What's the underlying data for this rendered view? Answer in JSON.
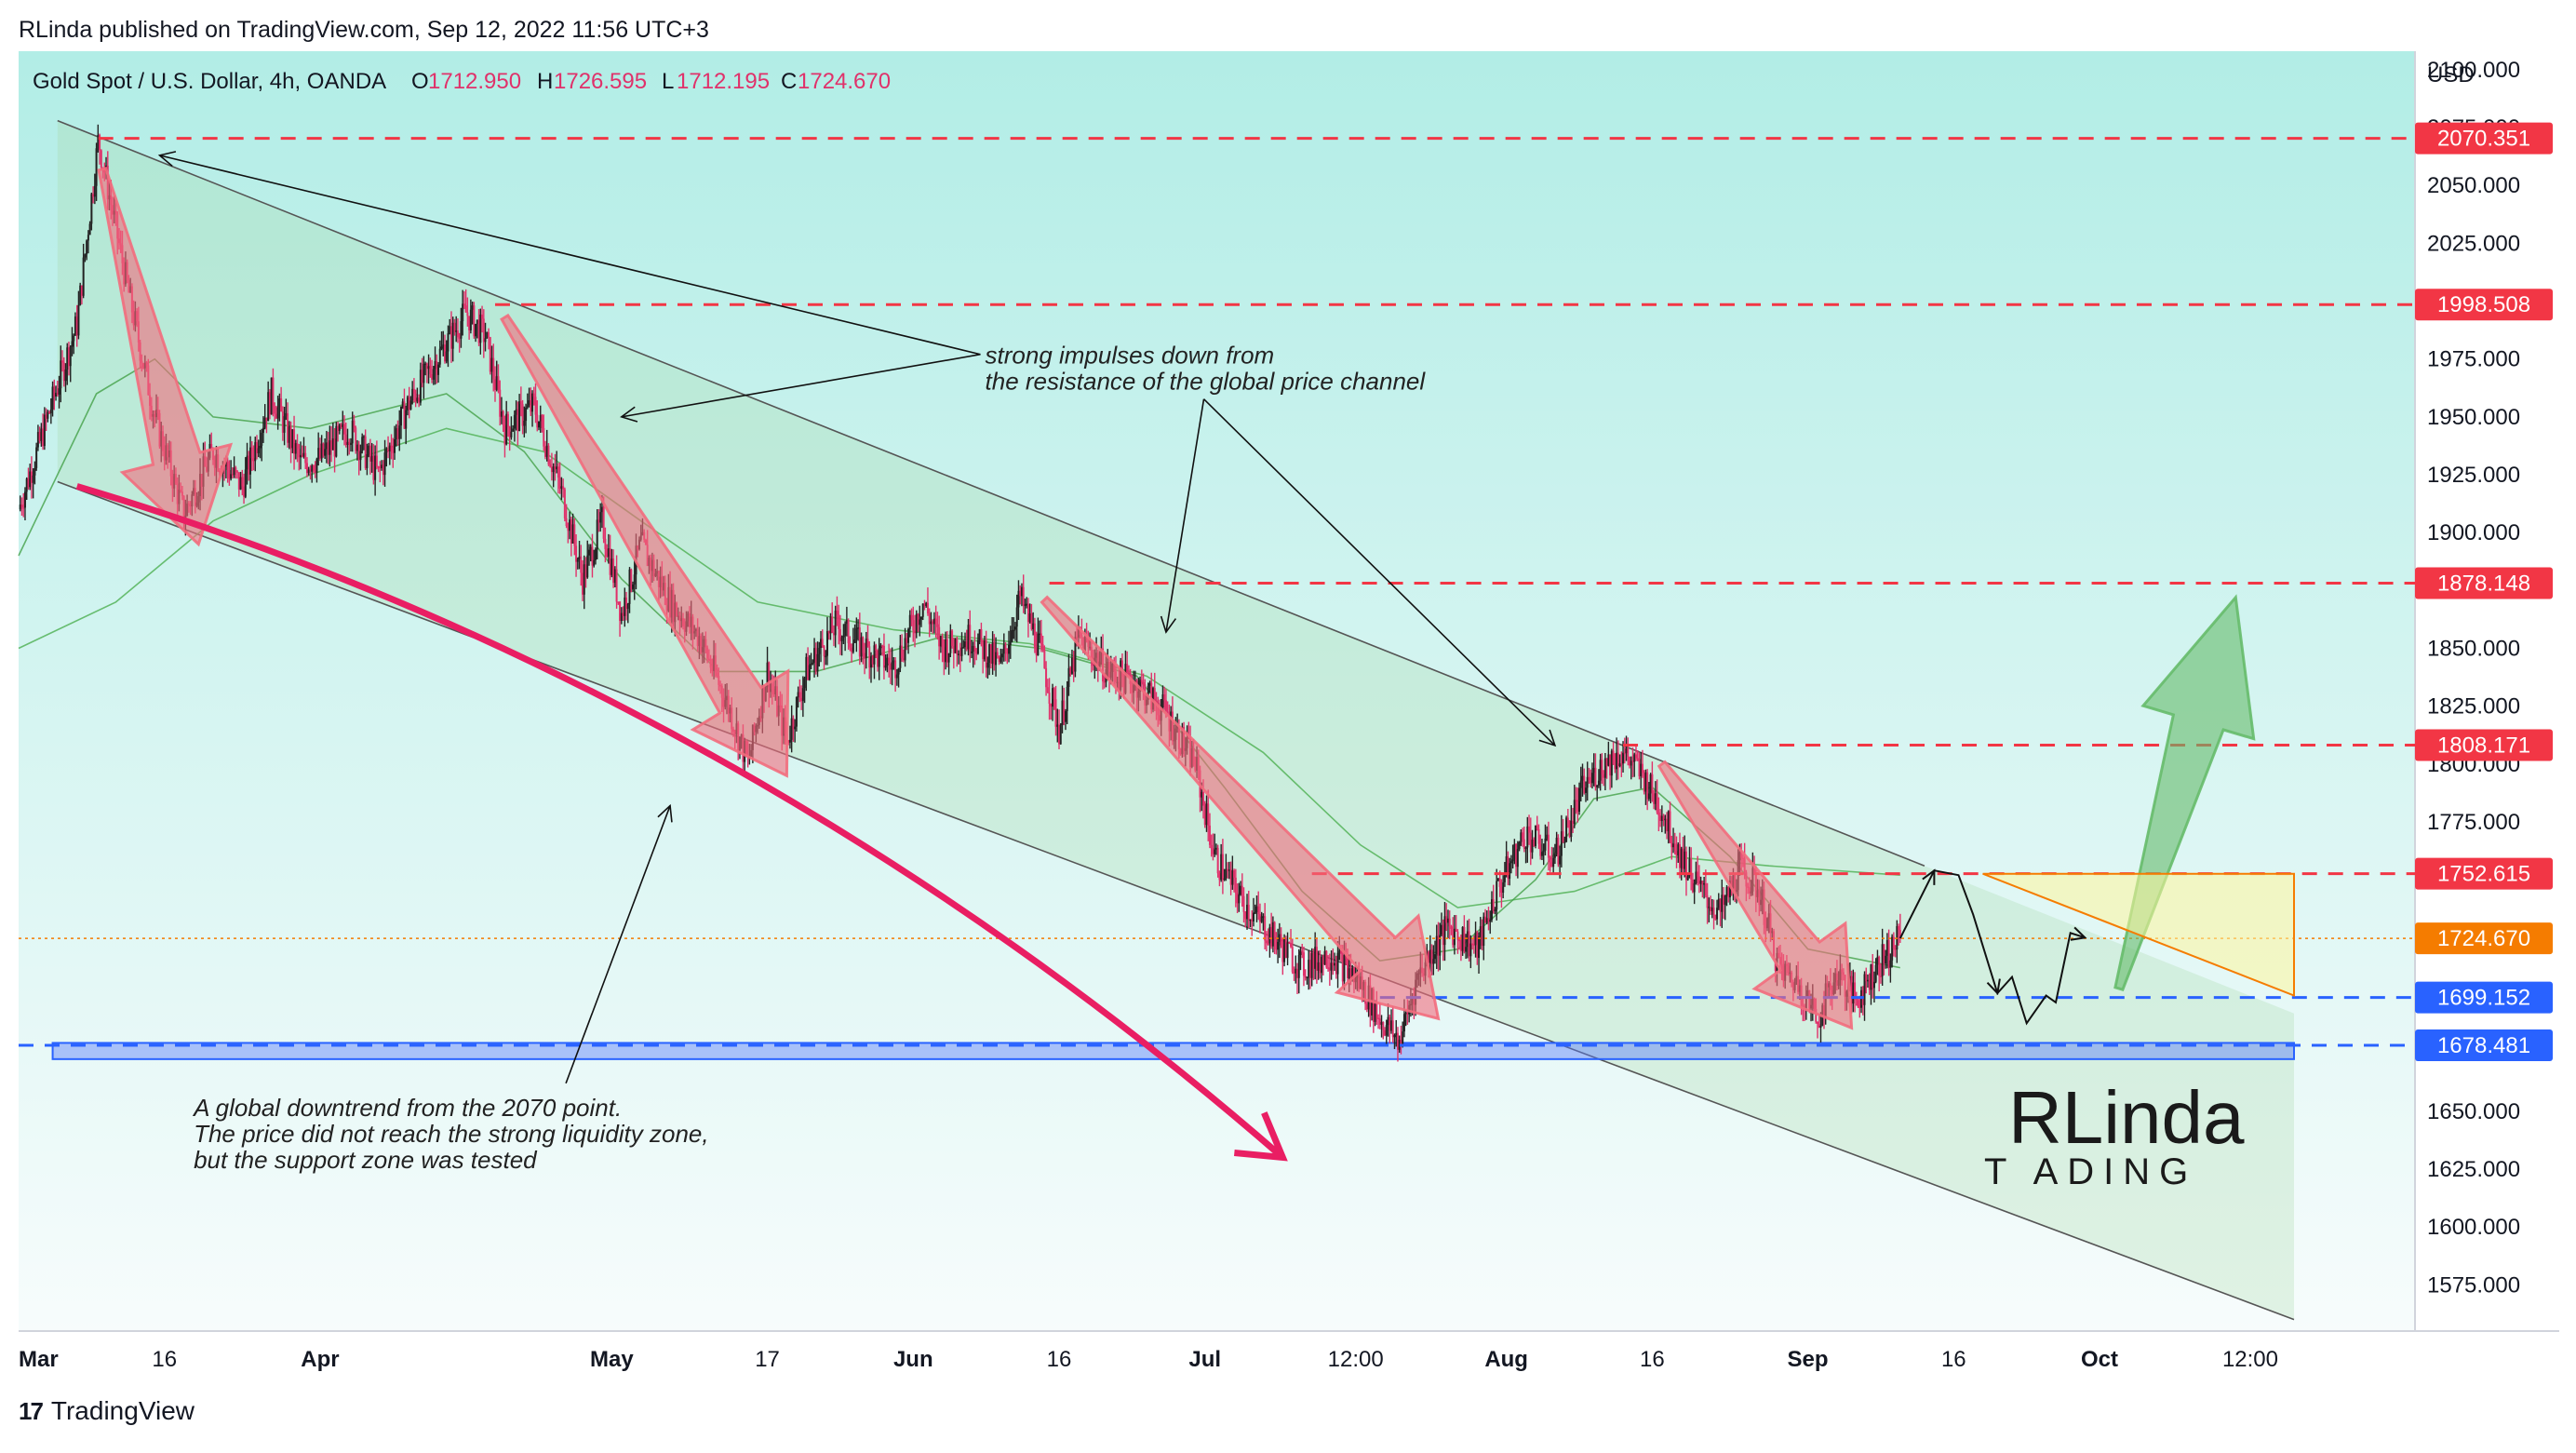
{
  "header": {
    "publish_line": "RLinda published on TradingView.com, Sep 12, 2022 11:56 UTC+3"
  },
  "legend": {
    "symbol": "Gold Spot / U.S. Dollar, 4h, OANDA",
    "open_label": "O",
    "open_value": "1712.950",
    "high_label": "H",
    "high_value": "1726.595",
    "low_label": "L",
    "low_value": "1712.195",
    "close_label": "C",
    "close_value": "1724.670"
  },
  "footer": {
    "brand": "TradingView"
  },
  "logo": {
    "line1": "RLinda",
    "line2": "T ADING"
  },
  "colors": {
    "bg_top": "#b2ede6",
    "bg_bottom": "#f7fcfc",
    "candle_up": "#222222",
    "candle_down": "#e0316a",
    "resistance": "#f23645",
    "support": "#2962ff",
    "current": "#f57c00",
    "arrow_red": "#f26d7d",
    "arrow_green": "#66bb6a"
  },
  "chart_data": {
    "type": "candlestick",
    "title": "Gold Spot / U.S. Dollar, 4h, OANDA",
    "ylabel": "USD",
    "currency_label": "USD",
    "ylim": [
      1555,
      2108
    ],
    "y_ticks": [
      2100,
      2075,
      2050,
      2025,
      1975,
      1950,
      1925,
      1900,
      1850,
      1825,
      1800,
      1775,
      1650,
      1625,
      1600,
      1575
    ],
    "y_tick_labels": [
      "2100.000",
      "2075.000",
      "2050.000",
      "2025.000",
      "1975.000",
      "1950.000",
      "1925.000",
      "1900.000",
      "1850.000",
      "1825.000",
      "1800.000",
      "1775.000",
      "1650.000",
      "1625.000",
      "1600.000",
      "1575.000"
    ],
    "x_range_days": [
      0,
      234
    ],
    "x_ticks": [
      {
        "label": "Mar",
        "day": 0
      },
      {
        "label": "16",
        "day": 15
      },
      {
        "label": "Apr",
        "day": 31
      },
      {
        "label": "May",
        "day": 61
      },
      {
        "label": "17",
        "day": 77
      },
      {
        "label": "Jun",
        "day": 92
      },
      {
        "label": "16",
        "day": 107
      },
      {
        "label": "Jul",
        "day": 122
      },
      {
        "label": "12:00",
        "day": 137.5
      },
      {
        "label": "Aug",
        "day": 153
      },
      {
        "label": "16",
        "day": 168
      },
      {
        "label": "Sep",
        "day": 184
      },
      {
        "label": "16",
        "day": 199
      },
      {
        "label": "Oct",
        "day": 214
      },
      {
        "label": "12:00",
        "day": 229.5
      }
    ],
    "price_path": [
      [
        0,
        1910
      ],
      [
        3,
        1950
      ],
      [
        6,
        1990
      ],
      [
        8.2,
        2070
      ],
      [
        11,
        2010
      ],
      [
        14,
        1950
      ],
      [
        17,
        1908
      ],
      [
        20,
        1935
      ],
      [
        23,
        1920
      ],
      [
        26,
        1960
      ],
      [
        29,
        1930
      ],
      [
        31,
        1932
      ],
      [
        34,
        1945
      ],
      [
        37,
        1925
      ],
      [
        40,
        1955
      ],
      [
        43,
        1975
      ],
      [
        46,
        1995
      ],
      [
        48,
        1985
      ],
      [
        50,
        1945
      ],
      [
        53,
        1955
      ],
      [
        56,
        1915
      ],
      [
        58,
        1880
      ],
      [
        60,
        1905
      ],
      [
        62,
        1865
      ],
      [
        64,
        1895
      ],
      [
        67,
        1870
      ],
      [
        70,
        1855
      ],
      [
        73,
        1825
      ],
      [
        75,
        1800
      ],
      [
        77,
        1840
      ],
      [
        79,
        1810
      ],
      [
        81,
        1840
      ],
      [
        84,
        1860
      ],
      [
        87,
        1850
      ],
      [
        90,
        1842
      ],
      [
        93,
        1870
      ],
      [
        95,
        1850
      ],
      [
        98,
        1855
      ],
      [
        101,
        1842
      ],
      [
        103,
        1872
      ],
      [
        105,
        1850
      ],
      [
        107,
        1815
      ],
      [
        109,
        1855
      ],
      [
        112,
        1840
      ],
      [
        115,
        1835
      ],
      [
        118,
        1822
      ],
      [
        121,
        1800
      ],
      [
        123,
        1760
      ],
      [
        126,
        1740
      ],
      [
        129,
        1725
      ],
      [
        132,
        1712
      ],
      [
        135,
        1718
      ],
      [
        138,
        1705
      ],
      [
        140,
        1690
      ],
      [
        142,
        1680
      ],
      [
        144,
        1710
      ],
      [
        147,
        1730
      ],
      [
        150,
        1720
      ],
      [
        152,
        1745
      ],
      [
        155,
        1770
      ],
      [
        158,
        1760
      ],
      [
        161,
        1790
      ],
      [
        163,
        1800
      ],
      [
        165,
        1805
      ],
      [
        167,
        1795
      ],
      [
        169,
        1780
      ],
      [
        171,
        1760
      ],
      [
        173,
        1745
      ],
      [
        175,
        1735
      ],
      [
        177,
        1755
      ],
      [
        179,
        1745
      ],
      [
        181,
        1712
      ],
      [
        183,
        1705
      ],
      [
        185,
        1690
      ],
      [
        187,
        1710
      ],
      [
        189,
        1698
      ],
      [
        191,
        1712
      ],
      [
        193.5,
        1724.67
      ]
    ],
    "ma_fast_path": [
      [
        0,
        1890
      ],
      [
        8,
        1960
      ],
      [
        14,
        1975
      ],
      [
        20,
        1950
      ],
      [
        30,
        1945
      ],
      [
        44,
        1960
      ],
      [
        52,
        1935
      ],
      [
        62,
        1880
      ],
      [
        72,
        1840
      ],
      [
        82,
        1840
      ],
      [
        95,
        1855
      ],
      [
        105,
        1850
      ],
      [
        115,
        1838
      ],
      [
        124,
        1790
      ],
      [
        132,
        1745
      ],
      [
        140,
        1715
      ],
      [
        148,
        1720
      ],
      [
        156,
        1750
      ],
      [
        162,
        1785
      ],
      [
        168,
        1790
      ],
      [
        176,
        1760
      ],
      [
        184,
        1720
      ],
      [
        193.5,
        1712
      ]
    ],
    "ma_slow_path": [
      [
        0,
        1850
      ],
      [
        10,
        1870
      ],
      [
        20,
        1905
      ],
      [
        30,
        1925
      ],
      [
        44,
        1945
      ],
      [
        54,
        1935
      ],
      [
        64,
        1905
      ],
      [
        76,
        1870
      ],
      [
        90,
        1858
      ],
      [
        104,
        1852
      ],
      [
        116,
        1838
      ],
      [
        128,
        1805
      ],
      [
        138,
        1765
      ],
      [
        148,
        1738
      ],
      [
        160,
        1745
      ],
      [
        170,
        1760
      ],
      [
        180,
        1756
      ],
      [
        193.5,
        1752
      ]
    ],
    "channel": {
      "upper": {
        "start": [
          4,
          2078
        ],
        "end": [
          196,
          1756
        ]
      },
      "lower": {
        "start": [
          4,
          1922
        ],
        "end": [
          234,
          1560
        ]
      },
      "fill_end_day": 234
    },
    "levels": [
      {
        "name": "resistance-2070",
        "value": 2070.351,
        "label": "2070.351",
        "style": "dashed",
        "color": "#f23645",
        "start_day": 8.2
      },
      {
        "name": "resistance-1998",
        "value": 1998.508,
        "label": "1998.508",
        "style": "dashed",
        "color": "#f23645",
        "start_day": 49
      },
      {
        "name": "resistance-1878",
        "value": 1878.148,
        "label": "1878.148",
        "style": "dashed",
        "color": "#f23645",
        "start_day": 106
      },
      {
        "name": "resistance-1808",
        "value": 1808.171,
        "label": "1808.171",
        "style": "dashed",
        "color": "#f23645",
        "start_day": 165
      },
      {
        "name": "resistance-1752",
        "value": 1752.615,
        "label": "1752.615",
        "style": "dashed",
        "color": "#f23645",
        "start_day": 133
      },
      {
        "name": "current-price",
        "value": 1724.67,
        "label": "1724.670",
        "style": "dotted",
        "color": "#f57c00",
        "start_day": 0
      },
      {
        "name": "support-1699",
        "value": 1699.152,
        "label": "1699.152",
        "style": "dashed",
        "color": "#2962ff",
        "start_day": 140
      },
      {
        "name": "support-1678",
        "value": 1678.481,
        "label": "1678.481",
        "style": "dashed",
        "color": "#2962ff",
        "start_day": 0
      }
    ],
    "zone": {
      "name": "liquidity-zone",
      "from_day": 3.5,
      "to_day": 234,
      "low": 1672.5,
      "high": 1679.5
    },
    "impulse_arrows": [
      {
        "from": [
          8.6,
          2057
        ],
        "to": [
          18.5,
          1895
        ]
      },
      {
        "from": [
          50,
          1993
        ],
        "to": [
          79,
          1795
        ]
      },
      {
        "from": [
          105.5,
          1871
        ],
        "to": [
          146,
          1690
        ]
      },
      {
        "from": [
          169,
          1800
        ],
        "to": [
          188.5,
          1686
        ]
      }
    ],
    "forecast_zigzag": [
      [
        193.5,
        1724.7
      ],
      [
        197,
        1754
      ],
      [
        199.5,
        1752
      ],
      [
        201,
        1735
      ],
      [
        203.5,
        1701
      ],
      [
        205,
        1708
      ],
      [
        206.5,
        1688
      ],
      [
        208.5,
        1700
      ],
      [
        209.5,
        1697
      ],
      [
        211,
        1727
      ],
      [
        212.5,
        1725
      ]
    ],
    "target_triangle": [
      [
        202,
        1752.6
      ],
      [
        234,
        1752.6
      ],
      [
        234,
        1700
      ]
    ],
    "green_arrow": {
      "from": [
        216,
        1703
      ],
      "to": [
        228,
        1872
      ]
    },
    "curve_arrow": {
      "points": [
        [
          6,
          1920
        ],
        [
          58,
          1855
        ],
        [
          100,
          1740
        ],
        [
          130,
          1630
        ]
      ]
    },
    "annotations": [
      {
        "lines": [
          "strong impulses down from",
          "the resistance of the global price channel"
        ],
        "anchor": [
          97,
          1977
        ],
        "targets": [
          [
            14.5,
            2063
          ],
          [
            62,
            1950
          ],
          [
            118,
            1857
          ],
          [
            158,
            1808
          ]
        ]
      },
      {
        "lines": [
          "A global downtrend from the 2070 point.",
          "The price did not reach the strong liquidity zone,",
          "but the support zone was tested"
        ],
        "anchor": [
          18,
          1652
        ],
        "targets": [
          [
            67,
            1782
          ]
        ]
      }
    ]
  }
}
